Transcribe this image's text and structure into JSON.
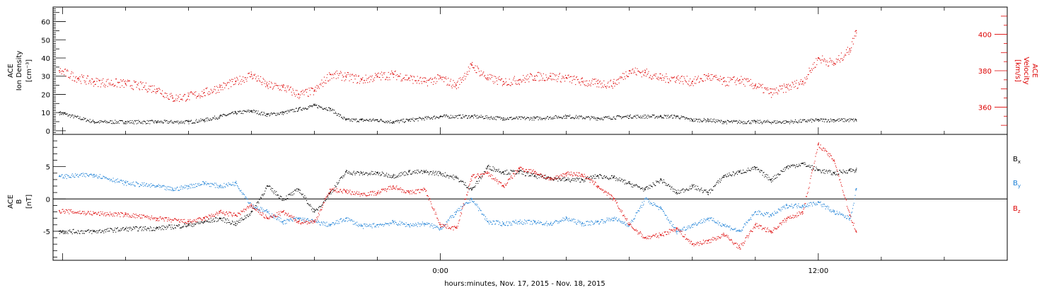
{
  "chart_data": [
    {
      "type": "scatter",
      "panel": "top",
      "ylabel_left": [
        "ACE",
        "Ion Density",
        "[cm⁻³]"
      ],
      "ylabel_right": [
        "ACE",
        "Velocity",
        "[km/s]"
      ],
      "y_left_range": [
        -2,
        68
      ],
      "y_left_ticks": [
        0,
        10,
        20,
        30,
        40,
        50,
        60
      ],
      "y_left_tick_labels": [
        "0",
        "10",
        "20",
        "30",
        "40",
        "50",
        "60"
      ],
      "y_right_range": [
        345,
        415
      ],
      "y_right_ticks": [
        360,
        380,
        400
      ],
      "y_right_tick_labels": [
        "360",
        "380",
        "400"
      ],
      "series": [
        {
          "color": "#000000",
          "axis": "left",
          "x": [
            -12.1,
            -11,
            -10,
            -9,
            -8,
            -7.5,
            -7,
            -6.5,
            -6,
            -5.5,
            -5,
            -4.5,
            -4,
            -3.5,
            -3,
            -2.5,
            -2,
            -1.5,
            -1,
            0,
            1,
            2,
            3,
            4,
            5,
            6,
            7,
            7.5,
            8,
            8.5,
            9,
            10,
            11,
            12,
            12.5,
            13.2
          ],
          "y": [
            10,
            5,
            5,
            5,
            5,
            6,
            8,
            10,
            11,
            9,
            10,
            12,
            14,
            12,
            6,
            6,
            6,
            5,
            6,
            8,
            8,
            7,
            7,
            8,
            7,
            8,
            8,
            8,
            6,
            6,
            5,
            5,
            5,
            6,
            6,
            6
          ]
        },
        {
          "color": "#dd0000",
          "axis": "right",
          "x": [
            -12.1,
            -11.5,
            -11,
            -10,
            -9,
            -8.5,
            -8,
            -7.5,
            -7,
            -6.5,
            -6,
            -5.5,
            -5,
            -4.5,
            -4,
            -3.5,
            -3,
            -2.5,
            -2,
            -1.5,
            -1,
            -0.5,
            0,
            0.5,
            1,
            1.5,
            2,
            2.5,
            3,
            3.5,
            4,
            4.5,
            5,
            5.5,
            6,
            6.5,
            7,
            7.5,
            8,
            8.5,
            9,
            9.5,
            10,
            10.5,
            11,
            11.5,
            12,
            12.5,
            13,
            13.2
          ],
          "y": [
            380,
            376,
            374,
            373,
            370,
            365,
            366,
            368,
            371,
            374,
            378,
            372,
            371,
            367,
            369,
            378,
            377,
            375,
            377,
            378,
            376,
            374,
            376,
            372,
            383,
            376,
            374,
            375,
            377,
            377,
            376,
            374,
            373,
            373,
            380,
            379,
            376,
            376,
            374,
            377,
            374,
            375,
            372,
            368,
            371,
            374,
            387,
            384,
            392,
            402
          ]
        }
      ]
    },
    {
      "type": "scatter",
      "panel": "bottom",
      "ylabel_left": [
        "ACE",
        "B",
        "[nT]"
      ],
      "y_range": [
        -9.5,
        10
      ],
      "y_ticks": [
        -5,
        0,
        5
      ],
      "y_tick_labels": [
        "-5",
        "0",
        "5"
      ],
      "zero_line": true,
      "xlabel": "hours:minutes, Nov. 17, 2015 - Nov. 18, 2015",
      "x_range": [
        -12.3,
        18
      ],
      "x_ticks": [
        0,
        12
      ],
      "x_tick_labels": [
        "0:00",
        "12:00"
      ],
      "series": [
        {
          "name": "Bx",
          "color": "#000000",
          "x": [
            -12.1,
            -11,
            -10,
            -9,
            -8,
            -7.5,
            -7,
            -6.5,
            -6,
            -5.5,
            -5,
            -4.5,
            -4,
            -3.5,
            -3,
            -2.5,
            -2,
            -1.5,
            -1,
            -0.5,
            0,
            0.5,
            1,
            1.5,
            2,
            2.5,
            3,
            3.5,
            4,
            4.5,
            5,
            5.5,
            6,
            6.5,
            7,
            7.5,
            8,
            8.5,
            9,
            9.5,
            10,
            10.5,
            11,
            11.5,
            12,
            12.5,
            13,
            13.2
          ],
          "y": [
            -5,
            -5,
            -4.6,
            -4.5,
            -4,
            -3.5,
            -3,
            -3.8,
            -2,
            2,
            0,
            1.5,
            -2,
            1,
            4.2,
            4,
            4,
            3.6,
            4.2,
            4.2,
            4,
            3.3,
            1.5,
            5,
            4.2,
            4.2,
            3.6,
            3.3,
            3,
            3,
            3.6,
            3.3,
            2.4,
            1.5,
            3,
            1,
            2,
            1,
            3.6,
            4.2,
            4.8,
            3,
            5,
            5.5,
            4.5,
            4,
            4.5,
            4.5
          ]
        },
        {
          "name": "By",
          "color": "#1a7fd6",
          "x": [
            -12.1,
            -11,
            -10,
            -9,
            -8.5,
            -8,
            -7.5,
            -7,
            -6.5,
            -6,
            -5.5,
            -5,
            -4.5,
            -4,
            -3.5,
            -3,
            -2.5,
            -2,
            -1.5,
            -1,
            -0.5,
            0,
            0.5,
            1,
            1.5,
            2,
            2.5,
            3,
            3.5,
            4,
            4.5,
            5,
            5.5,
            6,
            6.5,
            7,
            7.5,
            8,
            8.5,
            9,
            9.5,
            10,
            10.5,
            11,
            11.5,
            12,
            12.5,
            13,
            13.2
          ],
          "y": [
            3.5,
            3.8,
            2.5,
            2,
            1.5,
            2,
            2.5,
            2,
            2.5,
            -1,
            -2,
            -3.5,
            -3,
            -3.5,
            -4,
            -3,
            -4.2,
            -4,
            -3.6,
            -4,
            -3.8,
            -4.5,
            -2,
            0,
            -3.5,
            -3.8,
            -3.5,
            -3.6,
            -3.8,
            -3,
            -3.8,
            -3.5,
            -3,
            -4,
            0,
            -1.5,
            -5,
            -4,
            -3,
            -4,
            -5,
            -2,
            -2.5,
            -1,
            -1,
            -0.5,
            -2,
            -3,
            1.5
          ]
        },
        {
          "name": "Bz",
          "color": "#dd0000",
          "x": [
            -12.1,
            -11,
            -10,
            -9,
            -8,
            -7.5,
            -7,
            -6.5,
            -6,
            -5.5,
            -5,
            -4.5,
            -4,
            -3.5,
            -3,
            -2.5,
            -2,
            -1.5,
            -1,
            -0.5,
            0,
            0.5,
            1,
            1.5,
            2,
            2.5,
            3,
            3.5,
            4,
            4.5,
            5,
            5.5,
            6,
            6.5,
            7,
            7.5,
            8,
            8.5,
            9,
            9.5,
            10,
            10.5,
            11,
            11.5,
            12,
            12.5,
            13,
            13.2
          ],
          "y": [
            -1.8,
            -2.2,
            -2.4,
            -3,
            -3.5,
            -3,
            -2,
            -2.5,
            -1,
            -3,
            -2,
            -3.5,
            -3.5,
            1.5,
            1.2,
            0.8,
            1,
            2,
            1,
            1.5,
            -4,
            -4.5,
            3.5,
            4,
            2,
            4.8,
            4.2,
            3,
            4,
            3.8,
            2,
            0,
            -4,
            -6,
            -5.5,
            -4.5,
            -7,
            -6.5,
            -5.5,
            -7.5,
            -4,
            -5,
            -3,
            -2,
            8.5,
            6,
            -2.5,
            -5
          ]
        }
      ]
    }
  ]
}
